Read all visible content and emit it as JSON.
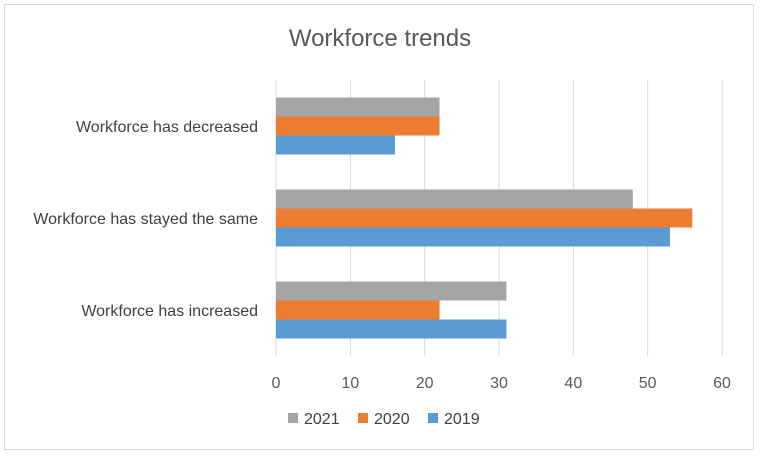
{
  "chart_data": {
    "type": "bar",
    "orientation": "horizontal",
    "title": "Workforce trends",
    "categories": [
      "Workforce has decreased",
      "Workforce has stayed the same",
      "Workforce has increased"
    ],
    "series": [
      {
        "name": "2021",
        "color": "#a5a5a5",
        "values": [
          22,
          48,
          31
        ]
      },
      {
        "name": "2020",
        "color": "#ed7d31",
        "values": [
          22,
          56,
          22
        ]
      },
      {
        "name": "2019",
        "color": "#5b9bd5",
        "values": [
          16,
          53,
          31
        ]
      }
    ],
    "xlim": [
      0,
      60
    ],
    "x_ticks": [
      "0",
      "10",
      "20",
      "30",
      "40",
      "50",
      "60"
    ],
    "grid": true,
    "legend_position": "bottom"
  }
}
